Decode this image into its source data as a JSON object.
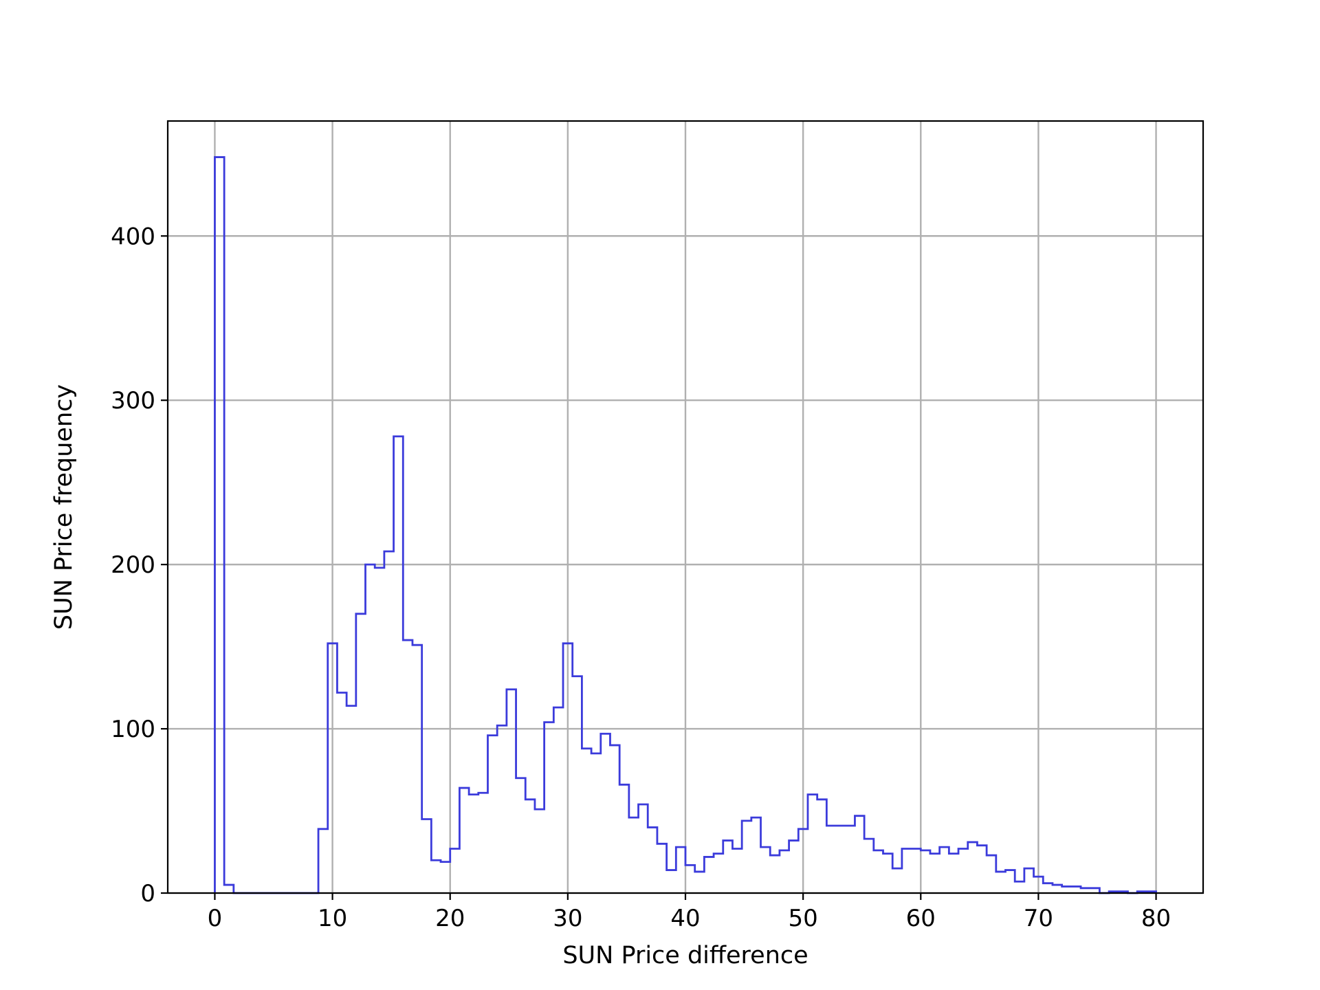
{
  "chart_data": {
    "type": "histogram",
    "histtype": "step",
    "xlabel": "SUN Price difference",
    "ylabel": "SUN Price frequency",
    "xlim": [
      -4,
      84
    ],
    "ylim": [
      0,
      470
    ],
    "xticks": [
      0,
      10,
      20,
      30,
      40,
      50,
      60,
      70,
      80
    ],
    "yticks": [
      0,
      100,
      200,
      300,
      400
    ],
    "grid": true,
    "line_color": "#3b3bdb",
    "bin_start": 0,
    "bin_width": 0.8,
    "counts": [
      448,
      5,
      0,
      0,
      0,
      0,
      0,
      0,
      0,
      0,
      0,
      39,
      152,
      122,
      114,
      170,
      200,
      198,
      208,
      278,
      154,
      151,
      45,
      20,
      19,
      27,
      64,
      60,
      61,
      96,
      102,
      124,
      70,
      57,
      51,
      104,
      113,
      152,
      132,
      88,
      85,
      97,
      90,
      66,
      46,
      54,
      40,
      30,
      14,
      28,
      17,
      13,
      22,
      24,
      32,
      27,
      44,
      46,
      28,
      23,
      26,
      32,
      39,
      60,
      57,
      41,
      41,
      41,
      47,
      33,
      26,
      24,
      15,
      27,
      27,
      26,
      24,
      28,
      24,
      27,
      31,
      29,
      23,
      13,
      14,
      7,
      15,
      10,
      6,
      5,
      4,
      4,
      3,
      3,
      0,
      1,
      1,
      0,
      1,
      1
    ]
  }
}
